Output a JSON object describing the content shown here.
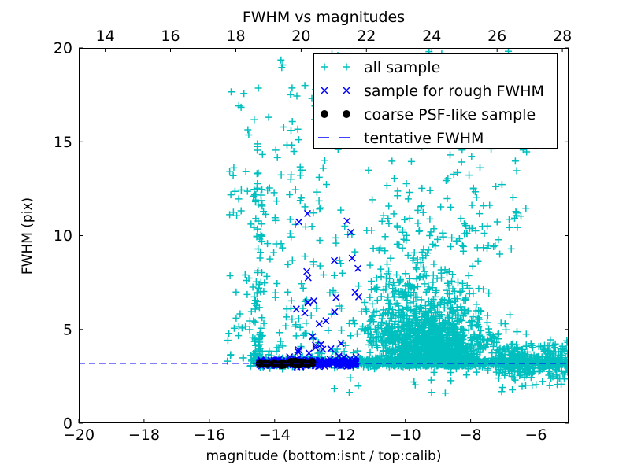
{
  "figure": {
    "background": "#ffffff",
    "axis_color": "#000000"
  },
  "chart_data": {
    "type": "scatter",
    "title": "FWHM vs magnitudes",
    "xlabel": "magnitude (bottom:isnt / top:calib)",
    "ylabel": "FWHM (pix)",
    "x_bottom": {
      "lim": [
        -20,
        -5
      ],
      "ticks": [
        -20,
        -18,
        -16,
        -14,
        -12,
        -10,
        -8,
        -6
      ],
      "tick_labels": [
        "−20",
        "−18",
        "−16",
        "−14",
        "−12",
        "−10",
        "−8",
        "−6"
      ]
    },
    "x_top": {
      "lim": [
        13.19,
        28.19
      ],
      "ticks": [
        14,
        16,
        18,
        20,
        22,
        24,
        26,
        28
      ],
      "tick_labels": [
        "14",
        "16",
        "18",
        "20",
        "22",
        "24",
        "26",
        "28"
      ]
    },
    "y": {
      "lim": [
        0,
        20
      ],
      "ticks": [
        0,
        5,
        10,
        15,
        20
      ],
      "tick_labels": [
        "0",
        "5",
        "10",
        "15",
        "20"
      ]
    },
    "grid": false,
    "legend_position": "upper-right",
    "tentative_fwhm": 3.2,
    "dash_color": "#0000ff",
    "seed": 1337,
    "legend": [
      {
        "label": "all sample",
        "marker": "plus",
        "color": "#00bfbf"
      },
      {
        "label": "sample for rough FWHM",
        "marker": "x",
        "color": "#0000ff"
      },
      {
        "label": "coarse PSF-like sample",
        "marker": "dot",
        "color": "#000000"
      },
      {
        "label": "tentative FWHM",
        "marker": "dash",
        "color": "#0000ff"
      }
    ],
    "series": [
      {
        "name": "all sample",
        "marker": "plus",
        "color": "#00bfbf",
        "clusters": [
          {
            "desc": "horizontal band at tentative FWHM",
            "n": 750,
            "mag": {
              "dist": "uniform",
              "min": -14.75,
              "max": -5.03
            },
            "fwhm": {
              "dist": "normal",
              "mean": 3.25,
              "sd": 0.12,
              "min": 2.85,
              "max": 3.75
            }
          },
          {
            "desc": "dense faint-end core",
            "n": 1250,
            "mag": {
              "dist": "normal",
              "mean": -9.2,
              "sd": 0.85,
              "min": -11.2,
              "max": -6.1
            },
            "fwhm": {
              "dist": "exp",
              "offset": 3.05,
              "mean": 0.9,
              "max": 9
            }
          },
          {
            "desc": "mid spread above core",
            "n": 500,
            "mag": {
              "dist": "normal",
              "mean": -9.6,
              "sd": 1.0,
              "min": -11.4,
              "max": -6.0
            },
            "fwhm": {
              "dist": "exp",
              "offset": 4.3,
              "mean": 1.9,
              "max": 13.5
            }
          },
          {
            "desc": "sparse large-FWHM right side",
            "n": 170,
            "mag": {
              "dist": "uniform",
              "min": -11.2,
              "max": -6.2
            },
            "fwhm": {
              "dist": "power",
              "min": 9,
              "max": 20,
              "p": 1.25
            }
          },
          {
            "desc": "faint right tail near line",
            "n": 260,
            "mag": {
              "dist": "uniform",
              "min": -7.3,
              "max": -5.02
            },
            "fwhm": {
              "dist": "normal",
              "mean": 3.35,
              "sd": 0.5,
              "min": 2.0,
              "max": 5.0
            }
          },
          {
            "desc": "bright-end sparse column region",
            "n": 260,
            "mag": {
              "dist": "uniform",
              "min": -15.45,
              "max": -11.35
            },
            "fwhm": {
              "dist": "power",
              "min": 3.3,
              "max": 19.8,
              "p": 1.8
            }
          },
          {
            "desc": "dense strip near mag -14.5",
            "n": 80,
            "mag": {
              "dist": "normal",
              "mean": -14.5,
              "sd": 0.1,
              "min": -14.75,
              "max": -14.25
            },
            "fwhm": {
              "dist": "power",
              "min": 3.3,
              "max": 13.5,
              "p": 2.0
            }
          },
          {
            "desc": "points below the band",
            "n": 40,
            "mag": {
              "dist": "power",
              "min": -5.1,
              "max": -12.6,
              "p": 1.8
            },
            "fwhm": {
              "dist": "uniform",
              "min": 1.6,
              "max": 3.0
            }
          }
        ]
      },
      {
        "name": "sample for rough FWHM",
        "marker": "x",
        "color": "#0000ff",
        "clusters": [
          {
            "desc": "dense band on tentative FWHM",
            "n": 270,
            "mag": {
              "dist": "uniform",
              "min": -14.5,
              "max": -11.5
            },
            "fwhm": {
              "dist": "normal",
              "mean": 3.22,
              "sd": 0.09,
              "min": 2.95,
              "max": 3.5
            }
          },
          {
            "desc": "scattered above band",
            "n": 34,
            "mag": {
              "dist": "uniform",
              "min": -13.6,
              "max": -11.35
            },
            "fwhm": {
              "dist": "power",
              "min": 3.5,
              "max": 11.7,
              "p": 1.5
            }
          }
        ]
      },
      {
        "name": "coarse PSF-like sample",
        "marker": "dot",
        "color": "#000000",
        "clusters": [
          {
            "desc": "blob of PSF stars on the line",
            "n": 17,
            "mag": {
              "dist": "uniform",
              "min": -14.52,
              "max": -12.85
            },
            "fwhm": {
              "dist": "normal",
              "mean": 3.17,
              "sd": 0.05,
              "min": 3.05,
              "max": 3.3
            }
          }
        ]
      }
    ]
  }
}
